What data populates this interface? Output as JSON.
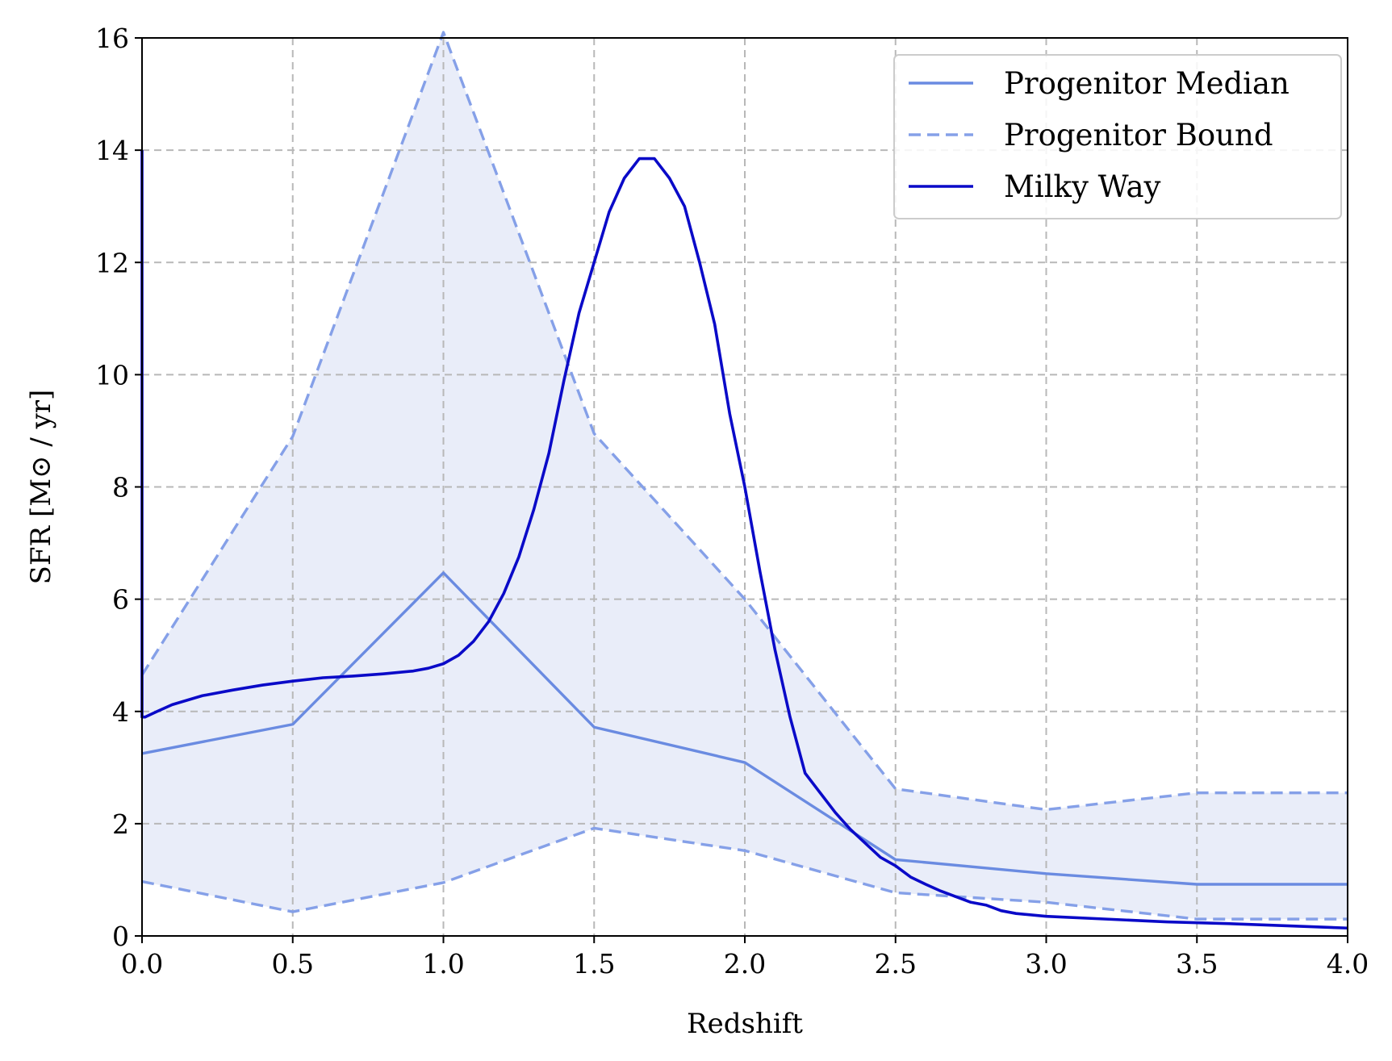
{
  "chart_data": {
    "type": "line",
    "xlabel": "Redshift",
    "ylabel": "SFR [M⊙ / yr]",
    "xlim": [
      0,
      4
    ],
    "ylim": [
      0,
      16
    ],
    "xticks": [
      "0.0",
      "0.5",
      "1.0",
      "1.5",
      "2.0",
      "2.5",
      "3.0",
      "3.5",
      "4.0"
    ],
    "yticks": [
      "0",
      "2",
      "4",
      "6",
      "8",
      "10",
      "12",
      "14",
      "16"
    ],
    "grid": true,
    "legend_position": "top-right",
    "legend": [
      {
        "label": "Progenitor Median",
        "color": "#6a8be1",
        "style": "solid"
      },
      {
        "label": "Progenitor Bound",
        "color": "#85a0e8",
        "style": "dashed"
      },
      {
        "label": "Milky Way",
        "color": "#0a0ac8",
        "style": "solid"
      }
    ],
    "fill_color": "#e9edf9",
    "series": [
      {
        "name": "Progenitor Median",
        "x": [
          0,
          0.5,
          1.0,
          1.5,
          2.0,
          2.5,
          3.0,
          3.5,
          4.0
        ],
        "y": [
          3.25,
          3.77,
          6.47,
          3.72,
          3.09,
          1.36,
          1.11,
          0.92,
          0.92
        ]
      },
      {
        "name": "Progenitor Bound",
        "bound": "upper",
        "x": [
          0,
          0.5,
          1.0,
          1.5,
          2.0,
          2.5,
          3.0,
          3.5,
          4.0
        ],
        "y": [
          4.65,
          8.9,
          16.1,
          8.95,
          6.0,
          2.62,
          2.25,
          2.55,
          2.55
        ]
      },
      {
        "name": "Progenitor Bound",
        "bound": "lower",
        "x": [
          0,
          0.5,
          1.0,
          1.5,
          2.0,
          2.5,
          3.0,
          3.5,
          4.0
        ],
        "y": [
          0.97,
          0.43,
          0.95,
          1.92,
          1.52,
          0.77,
          0.6,
          0.3,
          0.3
        ]
      },
      {
        "name": "Milky Way",
        "x": [
          0.0,
          0.0,
          0.01,
          0.05,
          0.1,
          0.2,
          0.3,
          0.4,
          0.5,
          0.6,
          0.7,
          0.8,
          0.9,
          0.95,
          1.0,
          1.05,
          1.1,
          1.15,
          1.2,
          1.25,
          1.3,
          1.35,
          1.4,
          1.45,
          1.5,
          1.55,
          1.6,
          1.65,
          1.7,
          1.75,
          1.8,
          1.85,
          1.9,
          1.95,
          2.0,
          2.05,
          2.1,
          2.15,
          2.2,
          2.25,
          2.3,
          2.35,
          2.4,
          2.45,
          2.5,
          2.55,
          2.6,
          2.65,
          2.7,
          2.75,
          2.8,
          2.85,
          2.9,
          3.0,
          3.2,
          3.4,
          3.6,
          3.8,
          4.0
        ],
        "y": [
          14.0,
          3.9,
          3.9,
          4.0,
          4.12,
          4.28,
          4.38,
          4.47,
          4.54,
          4.6,
          4.63,
          4.67,
          4.72,
          4.77,
          4.85,
          5.0,
          5.25,
          5.6,
          6.1,
          6.75,
          7.6,
          8.6,
          9.9,
          11.1,
          12.0,
          12.9,
          13.5,
          13.85,
          13.85,
          13.5,
          13.0,
          12.0,
          10.9,
          9.3,
          8.0,
          6.5,
          5.1,
          3.9,
          2.9,
          2.55,
          2.2,
          1.9,
          1.65,
          1.4,
          1.25,
          1.05,
          0.92,
          0.8,
          0.7,
          0.6,
          0.55,
          0.45,
          0.4,
          0.35,
          0.3,
          0.25,
          0.22,
          0.18,
          0.14
        ]
      }
    ]
  }
}
